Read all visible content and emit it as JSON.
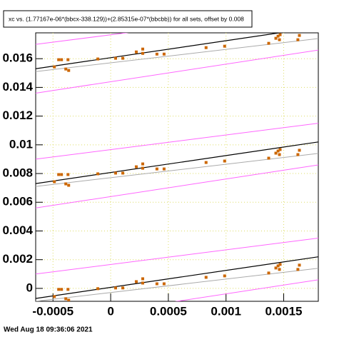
{
  "chart_data": {
    "type": "scatter",
    "title": "xc vs. (1.77167e-06*(bbcx-338.129))+(2.85315e-07*(bbcbb)) for all sets, offset by 0.008",
    "footer": "Wed Aug 18 09:36:06 2021",
    "xlim": [
      -0.00065,
      0.0018
    ],
    "ylim": [
      -0.0009,
      0.0178
    ],
    "xticks": [
      -0.0005,
      0,
      0.0005,
      0.001,
      0.0015
    ],
    "yticks": [
      0,
      0.002,
      0.004,
      0.006,
      0.008,
      0.01,
      0.012,
      0.014,
      0.016
    ],
    "grid": true,
    "grid_color": "#dddd66",
    "series": [
      {
        "kind": "line",
        "color": "#000000",
        "x": [
          -0.00065,
          0.0018
        ],
        "values": [
          0.0153,
          0.0182
        ]
      },
      {
        "kind": "line",
        "color": "#aaaaaa",
        "x": [
          -0.00065,
          0.0018
        ],
        "values": [
          0.0151,
          0.0174
        ]
      },
      {
        "kind": "line",
        "color": "#ff66ff",
        "x": [
          -0.00065,
          0.0018
        ],
        "values": [
          0.017,
          0.0195
        ]
      },
      {
        "kind": "line",
        "color": "#ff66ff",
        "x": [
          -0.00065,
          0.0018
        ],
        "values": [
          0.0136,
          0.0166
        ]
      },
      {
        "kind": "line",
        "color": "#000000",
        "x": [
          -0.00065,
          0.0018
        ],
        "values": [
          0.0073,
          0.0102
        ]
      },
      {
        "kind": "line",
        "color": "#aaaaaa",
        "x": [
          -0.00065,
          0.0018
        ],
        "values": [
          0.0071,
          0.0094
        ]
      },
      {
        "kind": "line",
        "color": "#ff66ff",
        "x": [
          -0.00065,
          0.0018
        ],
        "values": [
          0.009,
          0.0115
        ]
      },
      {
        "kind": "line",
        "color": "#ff66ff",
        "x": [
          -0.00065,
          0.0018
        ],
        "values": [
          0.0056,
          0.0086
        ]
      },
      {
        "kind": "line",
        "color": "#000000",
        "x": [
          -0.00065,
          0.0018
        ],
        "values": [
          -0.0007,
          0.0022
        ]
      },
      {
        "kind": "line",
        "color": "#aaaaaa",
        "x": [
          -0.00065,
          0.0018
        ],
        "values": [
          -0.0009,
          0.0014
        ]
      },
      {
        "kind": "line",
        "color": "#ff66ff",
        "x": [
          -0.00065,
          0.0018
        ],
        "values": [
          0.001,
          0.0035
        ]
      },
      {
        "kind": "line",
        "color": "#ff66ff",
        "x": [
          -0.00065,
          0.0018
        ],
        "values": [
          -0.0024,
          0.0006
        ]
      },
      {
        "kind": "points",
        "color": "#cc6600",
        "x": [
          -0.000488,
          -0.000451,
          -0.000426,
          -0.000389,
          -0.00037,
          -0.000364,
          -0.000111,
          4.3e-05,
          0.000105,
          0.000222,
          0.000278,
          0.000278,
          0.000401,
          0.000463,
          0.000827,
          0.000988,
          0.00137,
          0.001432,
          0.001451,
          0.001463,
          0.001469,
          0.001623,
          0.001636
        ],
        "values": [
          0.01543,
          0.01593,
          0.01593,
          0.01528,
          0.01593,
          0.01518,
          0.01598,
          0.01603,
          0.01603,
          0.01647,
          0.01667,
          0.01637,
          0.01632,
          0.01632,
          0.01677,
          0.01687,
          0.01707,
          0.01742,
          0.01757,
          0.01732,
          0.01767,
          0.01732,
          0.01762
        ]
      },
      {
        "kind": "points",
        "color": "#cc6600",
        "x": [
          -0.000488,
          -0.000451,
          -0.000426,
          -0.000389,
          -0.00037,
          -0.000364,
          -0.000111,
          4.3e-05,
          0.000105,
          0.000222,
          0.000278,
          0.000278,
          0.000401,
          0.000463,
          0.000827,
          0.000988,
          0.00137,
          0.001432,
          0.001451,
          0.001463,
          0.001469,
          0.001623,
          0.001636
        ],
        "values": [
          0.00743,
          0.00793,
          0.00793,
          0.00728,
          0.00793,
          0.00718,
          0.00798,
          0.00803,
          0.00803,
          0.00847,
          0.00867,
          0.00837,
          0.00832,
          0.00832,
          0.00877,
          0.00887,
          0.00907,
          0.00942,
          0.00957,
          0.00932,
          0.00967,
          0.00932,
          0.00962
        ]
      },
      {
        "kind": "points",
        "color": "#cc6600",
        "x": [
          -0.000488,
          -0.000451,
          -0.000426,
          -0.000389,
          -0.00037,
          -0.000364,
          -0.000111,
          4.3e-05,
          0.000105,
          0.000222,
          0.000278,
          0.000278,
          0.000401,
          0.000463,
          0.000827,
          0.000988,
          0.00137,
          0.001432,
          0.001451,
          0.001463,
          0.001469,
          0.001623,
          0.001636
        ],
        "values": [
          -0.00057,
          -7e-05,
          -7e-05,
          -0.00072,
          -7e-05,
          -0.00082,
          -2e-05,
          3e-05,
          3e-05,
          0.00047,
          0.00067,
          0.00037,
          0.00032,
          0.00032,
          0.00077,
          0.00087,
          0.00107,
          0.00142,
          0.00157,
          0.00132,
          0.00167,
          0.00132,
          0.00162
        ]
      }
    ]
  }
}
